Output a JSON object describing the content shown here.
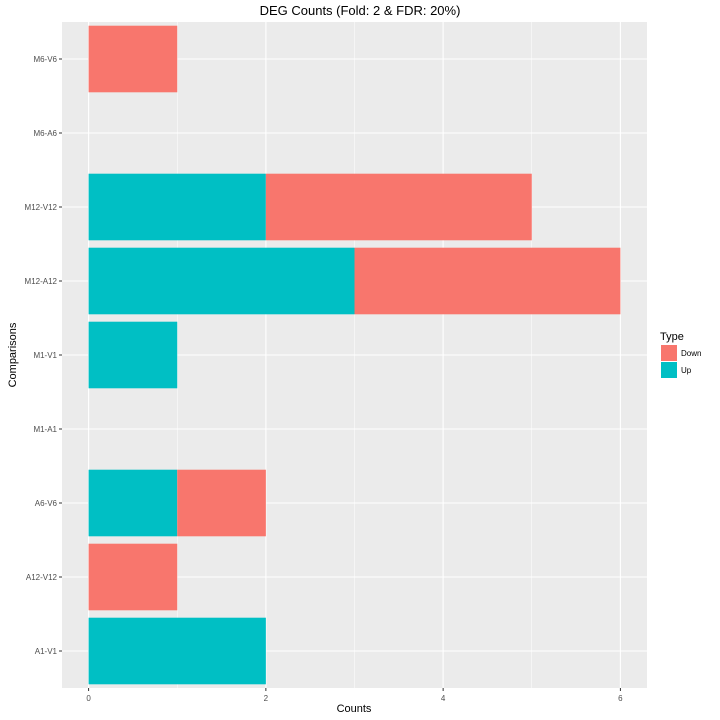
{
  "chart_data": {
    "type": "bar",
    "orientation": "horizontal",
    "stacked": true,
    "title": "DEG Counts (Fold: 2 & FDR: 20%)",
    "xlabel": "Counts",
    "ylabel": "Comparisons",
    "xlim": [
      -0.3,
      6.3
    ],
    "xticks": [
      0,
      2,
      4,
      6
    ],
    "xtick_labels": [
      "0",
      "2",
      "4",
      "6"
    ],
    "categories": [
      "A1-V1",
      "A12-V12",
      "A6-V6",
      "M1-A1",
      "M1-V1",
      "M12-A12",
      "M12-V12",
      "M6-A6",
      "M6-V6"
    ],
    "series": [
      {
        "name": "Up",
        "color": "#00BFC4",
        "values": [
          2,
          0,
          1,
          0,
          1,
          3,
          2,
          0,
          0
        ]
      },
      {
        "name": "Down",
        "color": "#F8766D",
        "values": [
          0,
          1,
          1,
          0,
          0,
          3,
          3,
          0,
          1
        ]
      }
    ],
    "legend": {
      "title": "Type",
      "position": "right",
      "entries": [
        {
          "label": "Down",
          "color": "#F8766D"
        },
        {
          "label": "Up",
          "color": "#00BFC4"
        }
      ]
    },
    "grid": true,
    "panel_background": "#EBEBEB",
    "grid_color": "#FFFFFF"
  }
}
